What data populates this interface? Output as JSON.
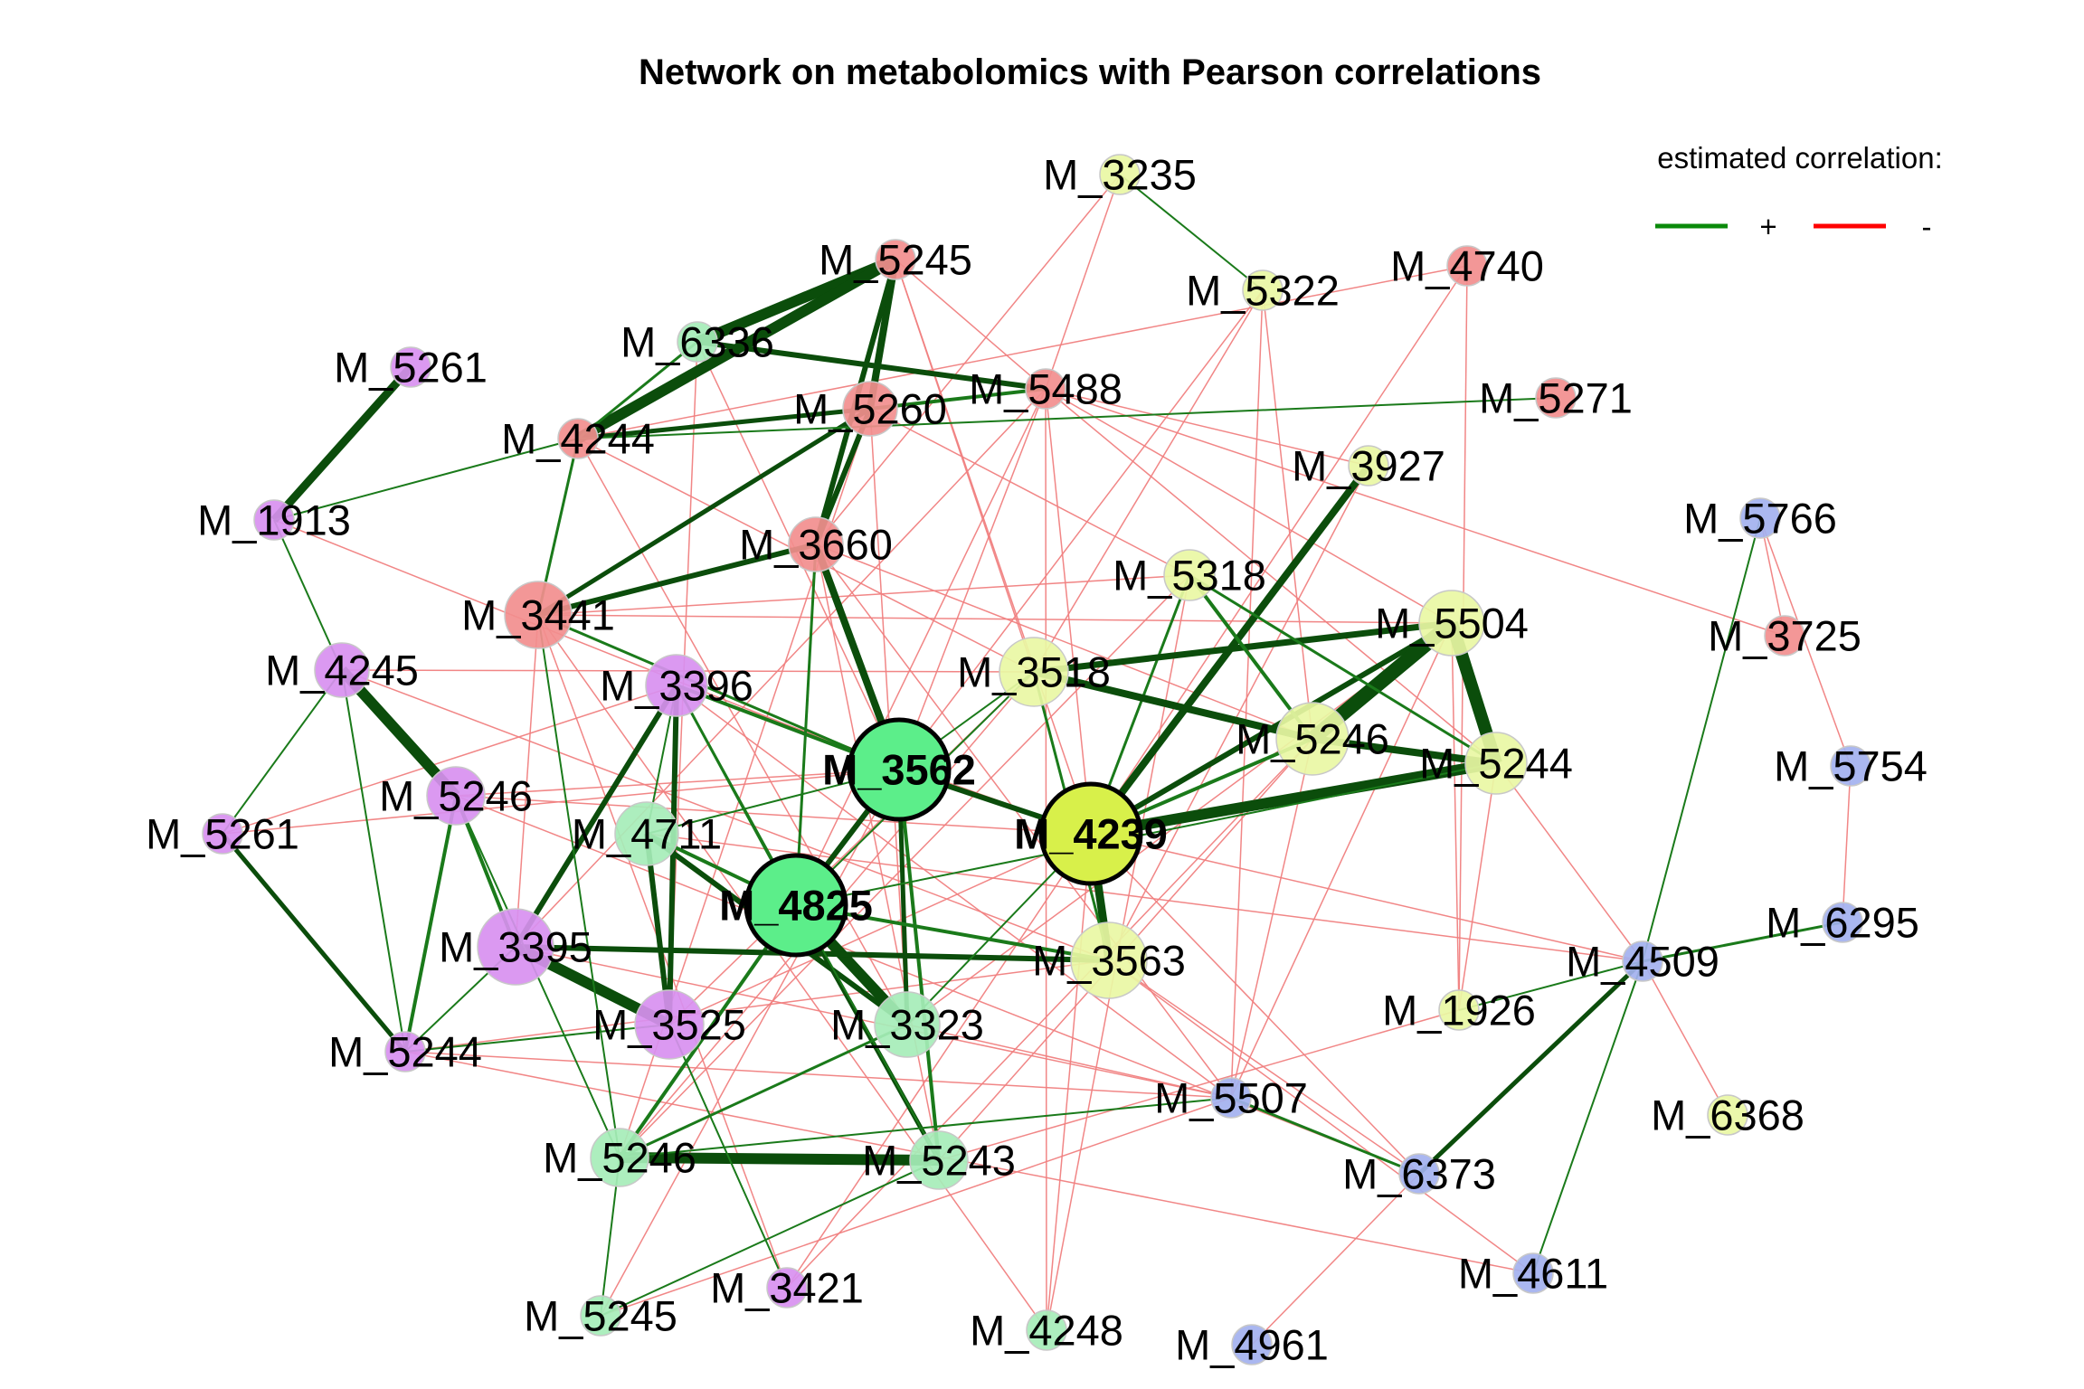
{
  "title": "Network on metabolomics with Pearson correlations",
  "legend": {
    "title": "estimated correlation:",
    "items": [
      {
        "symbol": "+",
        "color": "#0a8a0a"
      },
      {
        "symbol": "-",
        "color": "#ff0000"
      }
    ]
  },
  "colors": {
    "positive_edge": "#1a7a1a",
    "strong_positive_edge": "#0b4d0b",
    "negative_edge": "#f08080",
    "hub_border": "#000000",
    "node_border": "#c8c8c8"
  },
  "groups": {
    "red": "#f28e8e",
    "pale_yellow": "#e9f7a4",
    "purple": "#d890f0",
    "light_green": "#a6edb9",
    "blue": "#a3b1ef",
    "bright_green": "#5cee8a",
    "chartreuse": "#d8f04a"
  },
  "nodes": [
    {
      "id": "n1",
      "label": "M_3235",
      "group": "pale_yellow",
      "hub": false
    },
    {
      "id": "n2",
      "label": "M_5245",
      "group": "red",
      "hub": false
    },
    {
      "id": "n3",
      "label": "M_5322",
      "group": "pale_yellow",
      "hub": false
    },
    {
      "id": "n4",
      "label": "M_4740",
      "group": "red",
      "hub": false
    },
    {
      "id": "n5",
      "label": "M_6336",
      "group": "light_green",
      "hub": false
    },
    {
      "id": "n6",
      "label": "M_5261",
      "group": "purple",
      "hub": false
    },
    {
      "id": "n7",
      "label": "M_5488",
      "group": "red",
      "hub": false
    },
    {
      "id": "n8",
      "label": "M_5271",
      "group": "red",
      "hub": false
    },
    {
      "id": "n9",
      "label": "M_5260",
      "group": "red",
      "hub": false
    },
    {
      "id": "n10",
      "label": "M_4244",
      "group": "red",
      "hub": false
    },
    {
      "id": "n11",
      "label": "M_3927",
      "group": "pale_yellow",
      "hub": false
    },
    {
      "id": "n12",
      "label": "M_1913",
      "group": "purple",
      "hub": false
    },
    {
      "id": "n13",
      "label": "M_5766",
      "group": "blue",
      "hub": false
    },
    {
      "id": "n14",
      "label": "M_3660",
      "group": "red",
      "hub": false
    },
    {
      "id": "n15",
      "label": "M_5318",
      "group": "pale_yellow",
      "hub": false
    },
    {
      "id": "n16",
      "label": "M_3441",
      "group": "red",
      "hub": false
    },
    {
      "id": "n17",
      "label": "M_5504",
      "group": "pale_yellow",
      "hub": false
    },
    {
      "id": "n18",
      "label": "M_3725",
      "group": "red",
      "hub": false
    },
    {
      "id": "n19",
      "label": "M_4245",
      "group": "purple",
      "hub": false
    },
    {
      "id": "n20",
      "label": "M_3396",
      "group": "purple",
      "hub": false
    },
    {
      "id": "n21",
      "label": "M_3518",
      "group": "pale_yellow",
      "hub": false
    },
    {
      "id": "n22",
      "label": "M_5246",
      "group": "pale_yellow",
      "hub": false
    },
    {
      "id": "n23",
      "label": "M_5244",
      "group": "pale_yellow",
      "hub": false
    },
    {
      "id": "n24",
      "label": "M_3562",
      "group": "bright_green",
      "hub": true
    },
    {
      "id": "n25",
      "label": "M_5754",
      "group": "blue",
      "hub": false
    },
    {
      "id": "n26",
      "label": "M_5246",
      "group": "purple",
      "hub": false
    },
    {
      "id": "n27",
      "label": "M_5261",
      "group": "purple",
      "hub": false
    },
    {
      "id": "n28",
      "label": "M_4711",
      "group": "light_green",
      "hub": false
    },
    {
      "id": "n29",
      "label": "M_4239",
      "group": "chartreuse",
      "hub": true
    },
    {
      "id": "n30",
      "label": "M_4825",
      "group": "bright_green",
      "hub": true
    },
    {
      "id": "n31",
      "label": "M_6295",
      "group": "blue",
      "hub": false
    },
    {
      "id": "n32",
      "label": "M_3395",
      "group": "purple",
      "hub": false
    },
    {
      "id": "n33",
      "label": "M_3563",
      "group": "pale_yellow",
      "hub": false
    },
    {
      "id": "n34",
      "label": "M_4509",
      "group": "blue",
      "hub": false
    },
    {
      "id": "n35",
      "label": "M_3525",
      "group": "purple",
      "hub": false
    },
    {
      "id": "n36",
      "label": "M_3323",
      "group": "light_green",
      "hub": false
    },
    {
      "id": "n37",
      "label": "M_1926",
      "group": "pale_yellow",
      "hub": false
    },
    {
      "id": "n38",
      "label": "M_5244",
      "group": "purple",
      "hub": false
    },
    {
      "id": "n39",
      "label": "M_5507",
      "group": "blue",
      "hub": false
    },
    {
      "id": "n40",
      "label": "M_6368",
      "group": "pale_yellow",
      "hub": false
    },
    {
      "id": "n41",
      "label": "M_5246",
      "group": "light_green",
      "hub": false
    },
    {
      "id": "n42",
      "label": "M_5243",
      "group": "light_green",
      "hub": false
    },
    {
      "id": "n43",
      "label": "M_6373",
      "group": "blue",
      "hub": false
    },
    {
      "id": "n44",
      "label": "M_4611",
      "group": "blue",
      "hub": false
    },
    {
      "id": "n45",
      "label": "M_5245",
      "group": "light_green",
      "hub": false
    },
    {
      "id": "n46",
      "label": "M_3421",
      "group": "purple",
      "hub": false
    },
    {
      "id": "n47",
      "label": "M_4248",
      "group": "light_green",
      "hub": false
    },
    {
      "id": "n48",
      "label": "M_4961",
      "group": "blue",
      "hub": false
    }
  ],
  "edges": [
    [
      "n2",
      "n5",
      12,
      "+"
    ],
    [
      "n2",
      "n10",
      12,
      "+"
    ],
    [
      "n2",
      "n9",
      8,
      "+"
    ],
    [
      "n2",
      "n14",
      6,
      "+"
    ],
    [
      "n5",
      "n7",
      6,
      "+"
    ],
    [
      "n10",
      "n9",
      5,
      "+"
    ],
    [
      "n9",
      "n14",
      6,
      "+"
    ],
    [
      "n9",
      "n16",
      5,
      "+"
    ],
    [
      "n14",
      "n16",
      6,
      "+"
    ],
    [
      "n14",
      "n24",
      8,
      "+"
    ],
    [
      "n7",
      "n9",
      4,
      "+"
    ],
    [
      "n10",
      "n16",
      3,
      "+"
    ],
    [
      "n6",
      "n12",
      9,
      "+"
    ],
    [
      "n19",
      "n26",
      12,
      "+"
    ],
    [
      "n26",
      "n32",
      4,
      "+"
    ],
    [
      "n27",
      "n38",
      5,
      "+"
    ],
    [
      "n38",
      "n26",
      4,
      "+"
    ],
    [
      "n32",
      "n35",
      12,
      "+"
    ],
    [
      "n20",
      "n35",
      6,
      "+"
    ],
    [
      "n20",
      "n32",
      6,
      "+"
    ],
    [
      "n28",
      "n35",
      6,
      "+"
    ],
    [
      "n28",
      "n36",
      6,
      "+"
    ],
    [
      "n30",
      "n36",
      12,
      "+"
    ],
    [
      "n30",
      "n28",
      4,
      "+"
    ],
    [
      "n24",
      "n30",
      6,
      "+"
    ],
    [
      "n24",
      "n36",
      5,
      "+"
    ],
    [
      "n24",
      "n42",
      4,
      "+"
    ],
    [
      "n30",
      "n42",
      5,
      "+"
    ],
    [
      "n41",
      "n42",
      12,
      "+"
    ],
    [
      "n41",
      "n30",
      4,
      "+"
    ],
    [
      "n32",
      "n33",
      6,
      "+"
    ],
    [
      "n30",
      "n33",
      4,
      "+"
    ],
    [
      "n24",
      "n29",
      6,
      "+"
    ],
    [
      "n29",
      "n11",
      8,
      "+"
    ],
    [
      "n29",
      "n23",
      12,
      "+"
    ],
    [
      "n29",
      "n17",
      6,
      "+"
    ],
    [
      "n29",
      "n22",
      4,
      "+"
    ],
    [
      "n29",
      "n33",
      9,
      "+"
    ],
    [
      "n29",
      "n15",
      3,
      "+"
    ],
    [
      "n30",
      "n14",
      3,
      "+"
    ],
    [
      "n30",
      "n20",
      3,
      "+"
    ],
    [
      "n21",
      "n17",
      7,
      "+"
    ],
    [
      "n21",
      "n22",
      8,
      "+"
    ],
    [
      "n17",
      "n22",
      16,
      "+"
    ],
    [
      "n17",
      "n23",
      14,
      "+"
    ],
    [
      "n22",
      "n23",
      8,
      "+"
    ],
    [
      "n15",
      "n22",
      4,
      "+"
    ],
    [
      "n15",
      "n23",
      3,
      "+"
    ],
    [
      "n16",
      "n24",
      3,
      "+"
    ],
    [
      "n20",
      "n24",
      4,
      "+"
    ],
    [
      "n21",
      "n33",
      3,
      "+"
    ],
    [
      "n36",
      "n41",
      3,
      "+"
    ],
    [
      "n34",
      "n43",
      5,
      "+"
    ],
    [
      "n34",
      "n31",
      3,
      "+"
    ],
    [
      "n34",
      "n13",
      2,
      "+"
    ],
    [
      "n34",
      "n44",
      2,
      "+"
    ],
    [
      "n34",
      "n37",
      2,
      "+"
    ],
    [
      "n39",
      "n43",
      3,
      "+"
    ],
    [
      "n1",
      "n3",
      2,
      "+"
    ],
    [
      "n10",
      "n8",
      2,
      "+"
    ],
    [
      "n12",
      "n19",
      2,
      "+"
    ],
    [
      "n10",
      "n12",
      2,
      "+"
    ],
    [
      "n19",
      "n27",
      2,
      "+"
    ],
    [
      "n19",
      "n38",
      2,
      "+"
    ],
    [
      "n41",
      "n45",
      2,
      "+"
    ],
    [
      "n42",
      "n45",
      2,
      "+"
    ],
    [
      "n46",
      "n35",
      2,
      "+"
    ],
    [
      "n41",
      "n39",
      2,
      "+"
    ],
    [
      "n32",
      "n38",
      2,
      "+"
    ],
    [
      "n35",
      "n38",
      2,
      "+"
    ],
    [
      "n26",
      "n41",
      2,
      "+"
    ],
    [
      "n20",
      "n42",
      2,
      "+"
    ],
    [
      "n28",
      "n20",
      2,
      "+"
    ],
    [
      "n24",
      "n21",
      2,
      "+"
    ],
    [
      "n30",
      "n21",
      2,
      "+"
    ],
    [
      "n30",
      "n23",
      2,
      "+"
    ],
    [
      "n5",
      "n10",
      3,
      "+"
    ],
    [
      "n16",
      "n41",
      2,
      "+"
    ],
    [
      "n28",
      "n24",
      2,
      "+"
    ],
    [
      "n36",
      "n29",
      2,
      "+"
    ],
    [
      "n1",
      "n7",
      1.5,
      "-"
    ],
    [
      "n1",
      "n14",
      1.5,
      "-"
    ],
    [
      "n3",
      "n21",
      1.5,
      "-"
    ],
    [
      "n3",
      "n22",
      1.5,
      "-"
    ],
    [
      "n3",
      "n39",
      1.5,
      "-"
    ],
    [
      "n4",
      "n37",
      1.5,
      "-"
    ],
    [
      "n4",
      "n10",
      1.5,
      "-"
    ],
    [
      "n4",
      "n29",
      1.5,
      "-"
    ],
    [
      "n7",
      "n11",
      1.5,
      "-"
    ],
    [
      "n7",
      "n18",
      1.5,
      "-"
    ],
    [
      "n7",
      "n24",
      1.5,
      "-"
    ],
    [
      "n7",
      "n29",
      1.5,
      "-"
    ],
    [
      "n7",
      "n30",
      1.5,
      "-"
    ],
    [
      "n7",
      "n32",
      1.5,
      "-"
    ],
    [
      "n7",
      "n23",
      1.5,
      "-"
    ],
    [
      "n7",
      "n17",
      1.5,
      "-"
    ],
    [
      "n2",
      "n7",
      1.5,
      "-"
    ],
    [
      "n2",
      "n21",
      1.5,
      "-"
    ],
    [
      "n2",
      "n29",
      1.5,
      "-"
    ],
    [
      "n5",
      "n24",
      1.5,
      "-"
    ],
    [
      "n5",
      "n35",
      1.5,
      "-"
    ],
    [
      "n9",
      "n36",
      1.5,
      "-"
    ],
    [
      "n9",
      "n15",
      1.5,
      "-"
    ],
    [
      "n10",
      "n21",
      1.5,
      "-"
    ],
    [
      "n10",
      "n36",
      1.5,
      "-"
    ],
    [
      "n14",
      "n22",
      1.5,
      "-"
    ],
    [
      "n14",
      "n39",
      1.5,
      "-"
    ],
    [
      "n16",
      "n15",
      1.5,
      "-"
    ],
    [
      "n16",
      "n17",
      1.5,
      "-"
    ],
    [
      "n16",
      "n32",
      1.5,
      "-"
    ],
    [
      "n19",
      "n33",
      1.5,
      "-"
    ],
    [
      "n19",
      "n21",
      1.5,
      "-"
    ],
    [
      "n20",
      "n29",
      1.5,
      "-"
    ],
    [
      "n20",
      "n39",
      1.5,
      "-"
    ],
    [
      "n26",
      "n24",
      1.5,
      "-"
    ],
    [
      "n26",
      "n29",
      1.5,
      "-"
    ],
    [
      "n26",
      "n43",
      1.5,
      "-"
    ],
    [
      "n27",
      "n24",
      1.5,
      "-"
    ],
    [
      "n28",
      "n34",
      1.5,
      "-"
    ],
    [
      "n32",
      "n39",
      1.5,
      "-"
    ],
    [
      "n35",
      "n21",
      1.5,
      "-"
    ],
    [
      "n35",
      "n29",
      1.5,
      "-"
    ],
    [
      "n36",
      "n17",
      1.5,
      "-"
    ],
    [
      "n36",
      "n39",
      1.5,
      "-"
    ],
    [
      "n38",
      "n44",
      1.5,
      "-"
    ],
    [
      "n38",
      "n39",
      1.5,
      "-"
    ],
    [
      "n38",
      "n33",
      1.5,
      "-"
    ],
    [
      "n41",
      "n21",
      1.5,
      "-"
    ],
    [
      "n41",
      "n15",
      1.5,
      "-"
    ],
    [
      "n42",
      "n22",
      1.5,
      "-"
    ],
    [
      "n42",
      "n37",
      1.5,
      "-"
    ],
    [
      "n45",
      "n39",
      1.5,
      "-"
    ],
    [
      "n46",
      "n29",
      1.5,
      "-"
    ],
    [
      "n46",
      "n22",
      1.5,
      "-"
    ],
    [
      "n47",
      "n7",
      1.5,
      "-"
    ],
    [
      "n47",
      "n29",
      1.5,
      "-"
    ],
    [
      "n47",
      "n15",
      1.5,
      "-"
    ],
    [
      "n47",
      "n16",
      1.5,
      "-"
    ],
    [
      "n48",
      "n43",
      1.5,
      "-"
    ],
    [
      "n39",
      "n22",
      1.5,
      "-"
    ],
    [
      "n39",
      "n17",
      1.5,
      "-"
    ],
    [
      "n43",
      "n29",
      1.5,
      "-"
    ],
    [
      "n34",
      "n40",
      1.5,
      "-"
    ],
    [
      "n34",
      "n29",
      1.5,
      "-"
    ],
    [
      "n13",
      "n25",
      1.5,
      "-"
    ],
    [
      "n25",
      "n31",
      1.5,
      "-"
    ],
    [
      "n13",
      "n18",
      1.5,
      "-"
    ],
    [
      "n34",
      "n23",
      1.5,
      "-"
    ],
    [
      "n37",
      "n23",
      1.5,
      "-"
    ],
    [
      "n37",
      "n17",
      1.5,
      "-"
    ],
    [
      "n11",
      "n33",
      1.5,
      "-"
    ],
    [
      "n3",
      "n30",
      1.5,
      "-"
    ],
    [
      "n12",
      "n24",
      1.5,
      "-"
    ],
    [
      "n27",
      "n20",
      1.5,
      "-"
    ],
    [
      "n46",
      "n16",
      1.5,
      "-"
    ],
    [
      "n45",
      "n24",
      1.5,
      "-"
    ],
    [
      "n42",
      "n14",
      1.5,
      "-"
    ],
    [
      "n41",
      "n9",
      1.5,
      "-"
    ],
    [
      "n33",
      "n44",
      1.5,
      "-"
    ],
    [
      "n33",
      "n43",
      1.5,
      "-"
    ]
  ]
}
